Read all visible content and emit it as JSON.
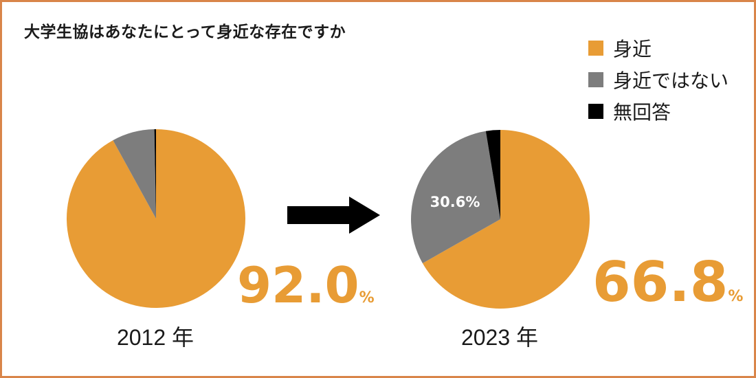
{
  "title": "大学生協はあなたにとって身近な存在ですか",
  "legend": [
    {
      "label": "身近",
      "color": "#e89c35"
    },
    {
      "label": "身近ではない",
      "color": "#7d7d7d"
    },
    {
      "label": "無回答",
      "color": "#000000"
    }
  ],
  "arrow": "right-arrow",
  "chart_data": [
    {
      "type": "pie",
      "year_label": "2012 年",
      "slices": [
        {
          "name": "身近",
          "value": 92.0,
          "color": "#e89c35"
        },
        {
          "name": "身近ではない",
          "value": 7.7,
          "color": "#7d7d7d"
        },
        {
          "name": "無回答",
          "value": 0.3,
          "color": "#000000"
        }
      ],
      "highlight_number": "92.0",
      "highlight_unit": "%",
      "slice_label": ""
    },
    {
      "type": "pie",
      "year_label": "2023 年",
      "slices": [
        {
          "name": "身近",
          "value": 66.8,
          "color": "#e89c35"
        },
        {
          "name": "身近ではない",
          "value": 30.6,
          "color": "#7d7d7d"
        },
        {
          "name": "無回答",
          "value": 2.6,
          "color": "#000000"
        }
      ],
      "highlight_number": "66.8",
      "highlight_unit": "%",
      "slice_label": "30.6%"
    }
  ]
}
